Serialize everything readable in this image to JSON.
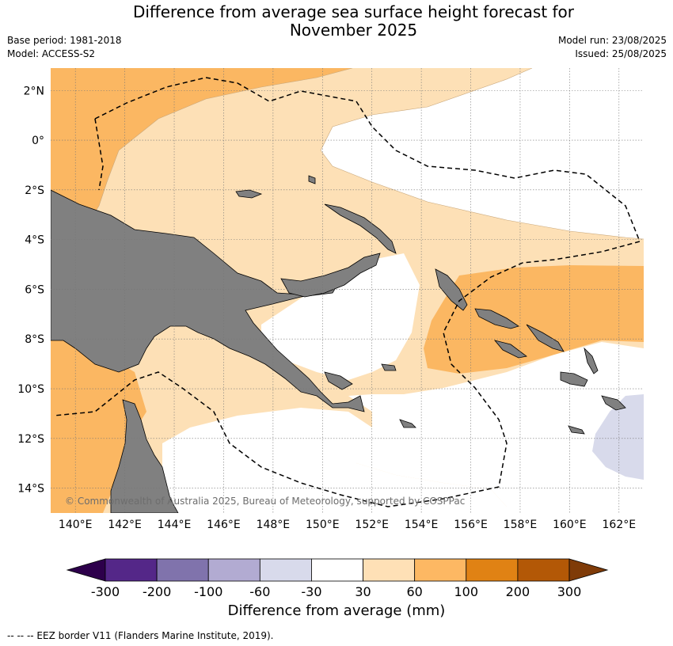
{
  "header": {
    "title_line1": "Difference from average sea surface height forecast for",
    "title_line2": "November 2025",
    "base_period": "Base period: 1981-2018",
    "model": "Model: ACCESS-S2",
    "model_run": "Model run: 23/08/2025",
    "issued": "Issued: 25/08/2025"
  },
  "map": {
    "lon_labels": [
      "140°E",
      "142°E",
      "144°E",
      "146°E",
      "148°E",
      "150°E",
      "152°E",
      "154°E",
      "156°E",
      "158°E",
      "160°E",
      "162°E"
    ],
    "lat_labels": [
      "2°N",
      "0°",
      "2°S",
      "4°S",
      "6°S",
      "8°S",
      "10°S",
      "12°S",
      "14°S"
    ],
    "copyright": "© Commonwealth of Australia 2025, Bureau of Meteorology, supported by COSPPac",
    "colors": {
      "land": "#808080",
      "anomaly_30_60": "#fde0b6",
      "anomaly_60_100": "#fbb762",
      "anomaly_neg60_neg30": "#d8daeb",
      "neutral": "#ffffff"
    }
  },
  "colorbar": {
    "ticks": [
      "-300",
      "-200",
      "-100",
      "-60",
      "-30",
      "30",
      "60",
      "100",
      "200",
      "300"
    ],
    "colors": {
      "below_min": "#2d004b",
      "bins": [
        "#542788",
        "#8073ac",
        "#b2abd2",
        "#d8daeb",
        "#ffffff",
        "#fee0b6",
        "#fdb863",
        "#e08214",
        "#b35806"
      ],
      "above_max": "#7f3b08"
    },
    "label": "Difference from average (mm)"
  },
  "footnote": "--  --  -- EEZ border V11 (Flanders Marine Institute, 2019)."
}
